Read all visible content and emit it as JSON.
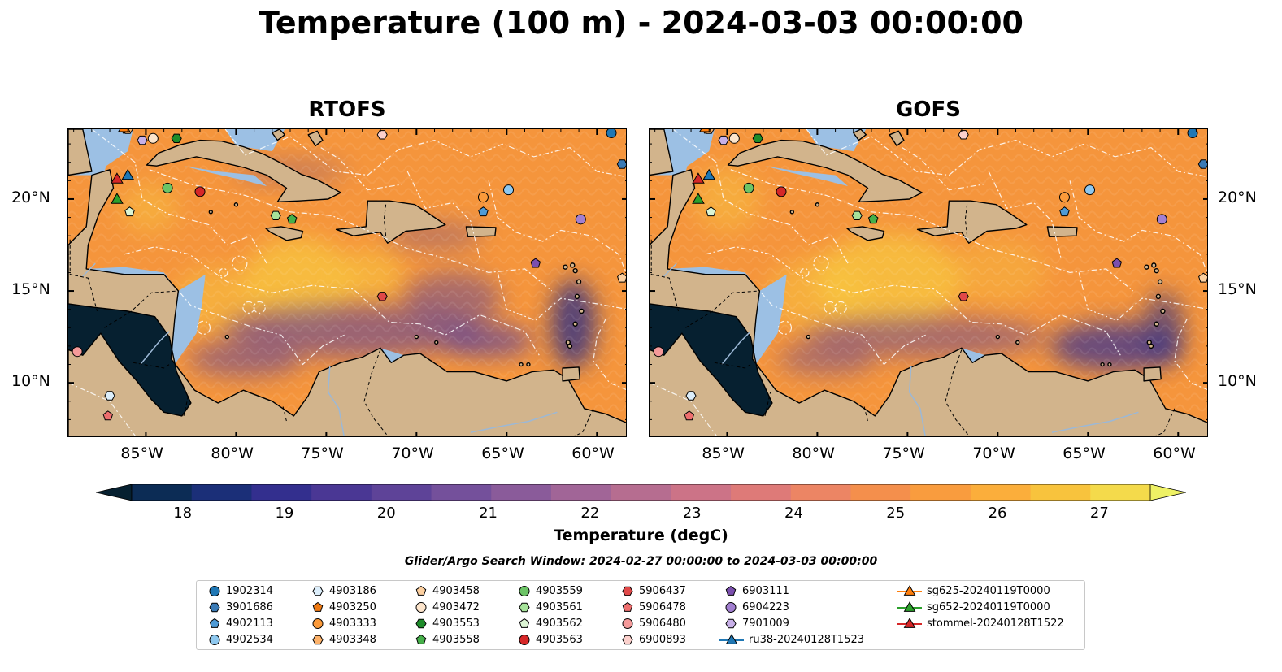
{
  "title": "Temperature (100 m) - 2024-03-03 00:00:00",
  "panels": [
    {
      "title": "RTOFS"
    },
    {
      "title": "GOFS"
    }
  ],
  "lon_ticks": [
    "85°W",
    "80°W",
    "75°W",
    "70°W",
    "65°W",
    "60°W"
  ],
  "lat_ticks": [
    "20°N",
    "15°N",
    "10°N"
  ],
  "colorbar": {
    "label": "Temperature (degC)",
    "ticks": [
      "18",
      "19",
      "20",
      "21",
      "22",
      "23",
      "24",
      "25",
      "26",
      "27"
    ],
    "range": [
      17.5,
      27.5
    ],
    "colors": [
      "#062030",
      "#0c2c55",
      "#1b2f78",
      "#332f8e",
      "#4a3794",
      "#5e4398",
      "#74509b",
      "#8a5b9a",
      "#a16597",
      "#b66d90",
      "#cc7387",
      "#de7a78",
      "#ec8564",
      "#f48f4c",
      "#f99c3e",
      "#fbae3b",
      "#f8c33d",
      "#f4da4b",
      "#eef165"
    ]
  },
  "search_window": "Glider/Argo Search Window: 2024-02-27 00:00:00 to 2024-03-03 00:00:00",
  "legend": [
    {
      "label": "1902314",
      "marker": "circle",
      "color": "#1f77b4"
    },
    {
      "label": "3901686",
      "marker": "hexagon",
      "color": "#3a7ab5"
    },
    {
      "label": "4902113",
      "marker": "pentagon",
      "color": "#4f9bd6"
    },
    {
      "label": "4902534",
      "marker": "circle",
      "color": "#8ec8ef"
    },
    {
      "label": "4903186",
      "marker": "hexagon",
      "color": "#dceefb"
    },
    {
      "label": "4903250",
      "marker": "pentagon",
      "color": "#f07a12"
    },
    {
      "label": "4903333",
      "marker": "circle",
      "color": "#fb9a3a"
    },
    {
      "label": "4903348",
      "marker": "hexagon",
      "color": "#fdb26a"
    },
    {
      "label": "4903458",
      "marker": "pentagon",
      "color": "#fdd0a0"
    },
    {
      "label": "4903472",
      "marker": "circle",
      "color": "#fde5cc"
    },
    {
      "label": "4903553",
      "marker": "hexagon",
      "color": "#1e8c2a"
    },
    {
      "label": "4903558",
      "marker": "pentagon",
      "color": "#46b04a"
    },
    {
      "label": "4903559",
      "marker": "circle",
      "color": "#6cc466"
    },
    {
      "label": "4903561",
      "marker": "hexagon",
      "color": "#a6e39a"
    },
    {
      "label": "4903562",
      "marker": "pentagon",
      "color": "#dcf5d4"
    },
    {
      "label": "4903563",
      "marker": "circle",
      "color": "#d62728"
    },
    {
      "label": "5906437",
      "marker": "hexagon",
      "color": "#e04848"
    },
    {
      "label": "5906478",
      "marker": "pentagon",
      "color": "#ee6e6e"
    },
    {
      "label": "5906480",
      "marker": "circle",
      "color": "#f59a9a"
    },
    {
      "label": "6900893",
      "marker": "hexagon",
      "color": "#fbd0cc"
    },
    {
      "label": "6903111",
      "marker": "pentagon",
      "color": "#7b4fae"
    },
    {
      "label": "6904223",
      "marker": "circle",
      "color": "#a27fd0"
    },
    {
      "label": "7901009",
      "marker": "hexagon",
      "color": "#c8b0e8"
    },
    {
      "label": "ru38-20240128T1523",
      "marker": "triangle-line",
      "color": "#1f77b4"
    },
    {
      "label": "sg625-20240119T0000",
      "marker": "triangle-line",
      "color": "#ff7f0e"
    },
    {
      "label": "sg652-20240119T0000",
      "marker": "triangle-line",
      "color": "#2ca02c"
    },
    {
      "label": "stommel-20240128T1522",
      "marker": "triangle-line",
      "color": "#d62728"
    }
  ],
  "map": {
    "lon_range": [
      -89.3,
      -58.3
    ],
    "lat_range": [
      7.0,
      23.8
    ],
    "land_color": "#d2b48c",
    "shelf_color": "#9cc0e4",
    "deep_pacific_color": "#062030",
    "warm_color": "#f5953c",
    "hot_color": "#f8c840",
    "cool_color": "#5e4398",
    "platforms": [
      {
        "id": "1902314",
        "lon": -59.2,
        "lat": 23.6
      },
      {
        "id": "3901686",
        "lon": -58.6,
        "lat": 21.9
      },
      {
        "id": "4902113",
        "lon": -66.3,
        "lat": 19.3
      },
      {
        "id": "4902534",
        "lon": -64.9,
        "lat": 20.5
      },
      {
        "id": "4903186",
        "lon": -87.0,
        "lat": 9.3
      },
      {
        "id": "4903250",
        "lon": -86.1,
        "lat": 23.8
      },
      {
        "id": "4903333",
        "lon": -66.3,
        "lat": 20.1
      },
      {
        "id": "4903348",
        "lon": -86.0,
        "lat": 23.8
      },
      {
        "id": "4903458",
        "lon": -58.6,
        "lat": 15.7
      },
      {
        "id": "4903472",
        "lon": -84.6,
        "lat": 23.3
      },
      {
        "id": "4903553",
        "lon": -83.3,
        "lat": 23.3
      },
      {
        "id": "4903558",
        "lon": -76.9,
        "lat": 18.9
      },
      {
        "id": "4903559",
        "lon": -83.8,
        "lat": 20.6
      },
      {
        "id": "4903561",
        "lon": -77.8,
        "lat": 19.1
      },
      {
        "id": "4903562",
        "lon": -85.9,
        "lat": 19.3
      },
      {
        "id": "4903563",
        "lon": -82.0,
        "lat": 20.4
      },
      {
        "id": "5906437",
        "lon": -71.9,
        "lat": 14.7
      },
      {
        "id": "5906478",
        "lon": -87.1,
        "lat": 8.2
      },
      {
        "id": "5906480",
        "lon": -88.8,
        "lat": 11.7
      },
      {
        "id": "6900893",
        "lon": -71.9,
        "lat": 23.5
      },
      {
        "id": "6903111",
        "lon": -63.4,
        "lat": 16.5
      },
      {
        "id": "6904223",
        "lon": -60.9,
        "lat": 18.9
      },
      {
        "id": "7901009",
        "lon": -85.2,
        "lat": 23.2
      },
      {
        "id": "ru38-20240128T1523",
        "lon": -86.0,
        "lat": 21.3
      },
      {
        "id": "sg625-20240119T0000",
        "lon": -86.2,
        "lat": 23.9
      },
      {
        "id": "sg652-20240119T0000",
        "lon": -86.6,
        "lat": 20.0
      },
      {
        "id": "stommel-20240128T1522",
        "lon": -86.6,
        "lat": 21.1
      }
    ]
  }
}
